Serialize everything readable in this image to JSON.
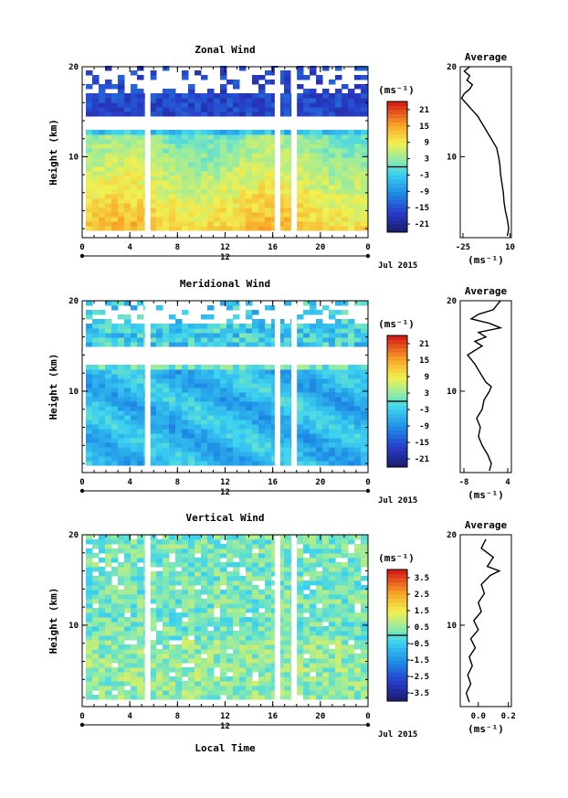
{
  "chart_data": [
    {
      "type": "heatmap",
      "title": "Zonal Wind",
      "ylabel": "Height (km)",
      "ylim": [
        1,
        20
      ],
      "xlim": [
        0,
        24
      ],
      "x_ticks": [
        "0",
        "4",
        "8",
        "12",
        "16",
        "20",
        "0"
      ],
      "y_ticks": [
        "10",
        "20"
      ],
      "date_label": "Jul 2015",
      "day_label": "12",
      "units": "(ms⁻¹)",
      "colorbar_ticks": [
        "21",
        "15",
        "9",
        "3",
        "-3",
        "-9",
        "-15",
        "-21"
      ],
      "colorbar_range": [
        -24,
        24
      ],
      "gaps_x": [
        5.5,
        16.4,
        17.8
      ],
      "profile": {
        "title": "Average",
        "xlabel": "(ms⁻¹)",
        "x_ticks": [
          "-25",
          "10"
        ],
        "xlim": [
          -27,
          11
        ],
        "points": [
          [
            8,
            1.2
          ],
          [
            9,
            2
          ],
          [
            8,
            3
          ],
          [
            6.5,
            4
          ],
          [
            5.5,
            5
          ],
          [
            5,
            6
          ],
          [
            4,
            7
          ],
          [
            3,
            8
          ],
          [
            2.5,
            9
          ],
          [
            1.5,
            10
          ],
          [
            0,
            11
          ],
          [
            -2,
            11.5
          ],
          [
            -4,
            12
          ],
          [
            -6,
            12.5
          ],
          [
            -8,
            13
          ],
          [
            -10,
            13.5
          ],
          [
            -12,
            14
          ],
          [
            -14,
            14.5
          ],
          [
            -17,
            15
          ],
          [
            -20,
            15.5
          ],
          [
            -23,
            16
          ],
          [
            -26,
            16.5
          ],
          [
            -24,
            17
          ],
          [
            -20,
            17.5
          ],
          [
            -18,
            18
          ],
          [
            -22,
            18.5
          ],
          [
            -20,
            19
          ],
          [
            -24,
            19.5
          ],
          [
            -20,
            20
          ]
        ]
      }
    },
    {
      "type": "heatmap",
      "title": "Meridional Wind",
      "ylabel": "Height (km)",
      "ylim": [
        1,
        20
      ],
      "xlim": [
        0,
        24
      ],
      "x_ticks": [
        "0",
        "4",
        "8",
        "12",
        "16",
        "20",
        "0"
      ],
      "y_ticks": [
        "10",
        "20"
      ],
      "date_label": "Jul 2015",
      "day_label": "12",
      "units": "(ms⁻¹)",
      "colorbar_ticks": [
        "21",
        "15",
        "9",
        "3",
        "-3",
        "-9",
        "-15",
        "-21"
      ],
      "colorbar_range": [
        -24,
        24
      ],
      "gaps_x": [
        5.5,
        16.4,
        17.8
      ],
      "profile": {
        "title": "Average",
        "xlabel": "(ms⁻¹)",
        "x_ticks": [
          "-8",
          "4"
        ],
        "xlim": [
          -9,
          5
        ],
        "points": [
          [
            -1,
            1.2
          ],
          [
            -0.5,
            2
          ],
          [
            -1.5,
            3
          ],
          [
            -3,
            4
          ],
          [
            -4,
            5
          ],
          [
            -3.5,
            6
          ],
          [
            -4.5,
            7
          ],
          [
            -3,
            8
          ],
          [
            -2.5,
            9
          ],
          [
            -1,
            10
          ],
          [
            -0.5,
            10.5
          ],
          [
            -2,
            11
          ],
          [
            -3.5,
            12
          ],
          [
            -5,
            13
          ],
          [
            -6,
            13.5
          ],
          [
            -7,
            14
          ],
          [
            -5,
            14.5
          ],
          [
            -3,
            15
          ],
          [
            -5,
            15.5
          ],
          [
            -2,
            16
          ],
          [
            -4,
            16.5
          ],
          [
            2,
            17
          ],
          [
            -1,
            17.5
          ],
          [
            -6,
            18
          ],
          [
            -4,
            18.5
          ],
          [
            0,
            19
          ],
          [
            2,
            20
          ]
        ]
      }
    },
    {
      "type": "heatmap",
      "title": "Vertical Wind",
      "ylabel": "Height (km)",
      "xlabel": "Local Time",
      "ylim": [
        1,
        20
      ],
      "xlim": [
        0,
        24
      ],
      "x_ticks": [
        "0",
        "4",
        "8",
        "12",
        "16",
        "20",
        "0"
      ],
      "y_ticks": [
        "10",
        "20"
      ],
      "date_label": "Jul 2015",
      "day_label": "12",
      "units": "(ms⁻¹)",
      "colorbar_ticks": [
        "3.5",
        "2.5",
        "1.5",
        "0.5",
        "-0.5",
        "-1.5",
        "-2.5",
        "-3.5"
      ],
      "colorbar_range": [
        -4,
        4
      ],
      "gaps_x": [
        5.5,
        16.4,
        17.8
      ],
      "profile": {
        "title": "Average",
        "xlabel": "(ms⁻¹)",
        "x_ticks": [
          "0.0",
          "0.2"
        ],
        "xlim": [
          -0.12,
          0.22
        ],
        "points": [
          [
            -0.06,
            1.5
          ],
          [
            -0.08,
            2.5
          ],
          [
            -0.05,
            3.5
          ],
          [
            -0.07,
            4.5
          ],
          [
            -0.04,
            5.5
          ],
          [
            -0.06,
            6.5
          ],
          [
            -0.02,
            7.5
          ],
          [
            -0.05,
            8.5
          ],
          [
            0.0,
            9.5
          ],
          [
            -0.03,
            10.5
          ],
          [
            0.02,
            11.5
          ],
          [
            0.0,
            12.5
          ],
          [
            0.04,
            13.5
          ],
          [
            0.02,
            14.5
          ],
          [
            0.08,
            15.5
          ],
          [
            0.14,
            16
          ],
          [
            0.06,
            16.5
          ],
          [
            0.1,
            17.5
          ],
          [
            0.02,
            18.5
          ],
          [
            0.05,
            19.5
          ]
        ]
      }
    }
  ]
}
